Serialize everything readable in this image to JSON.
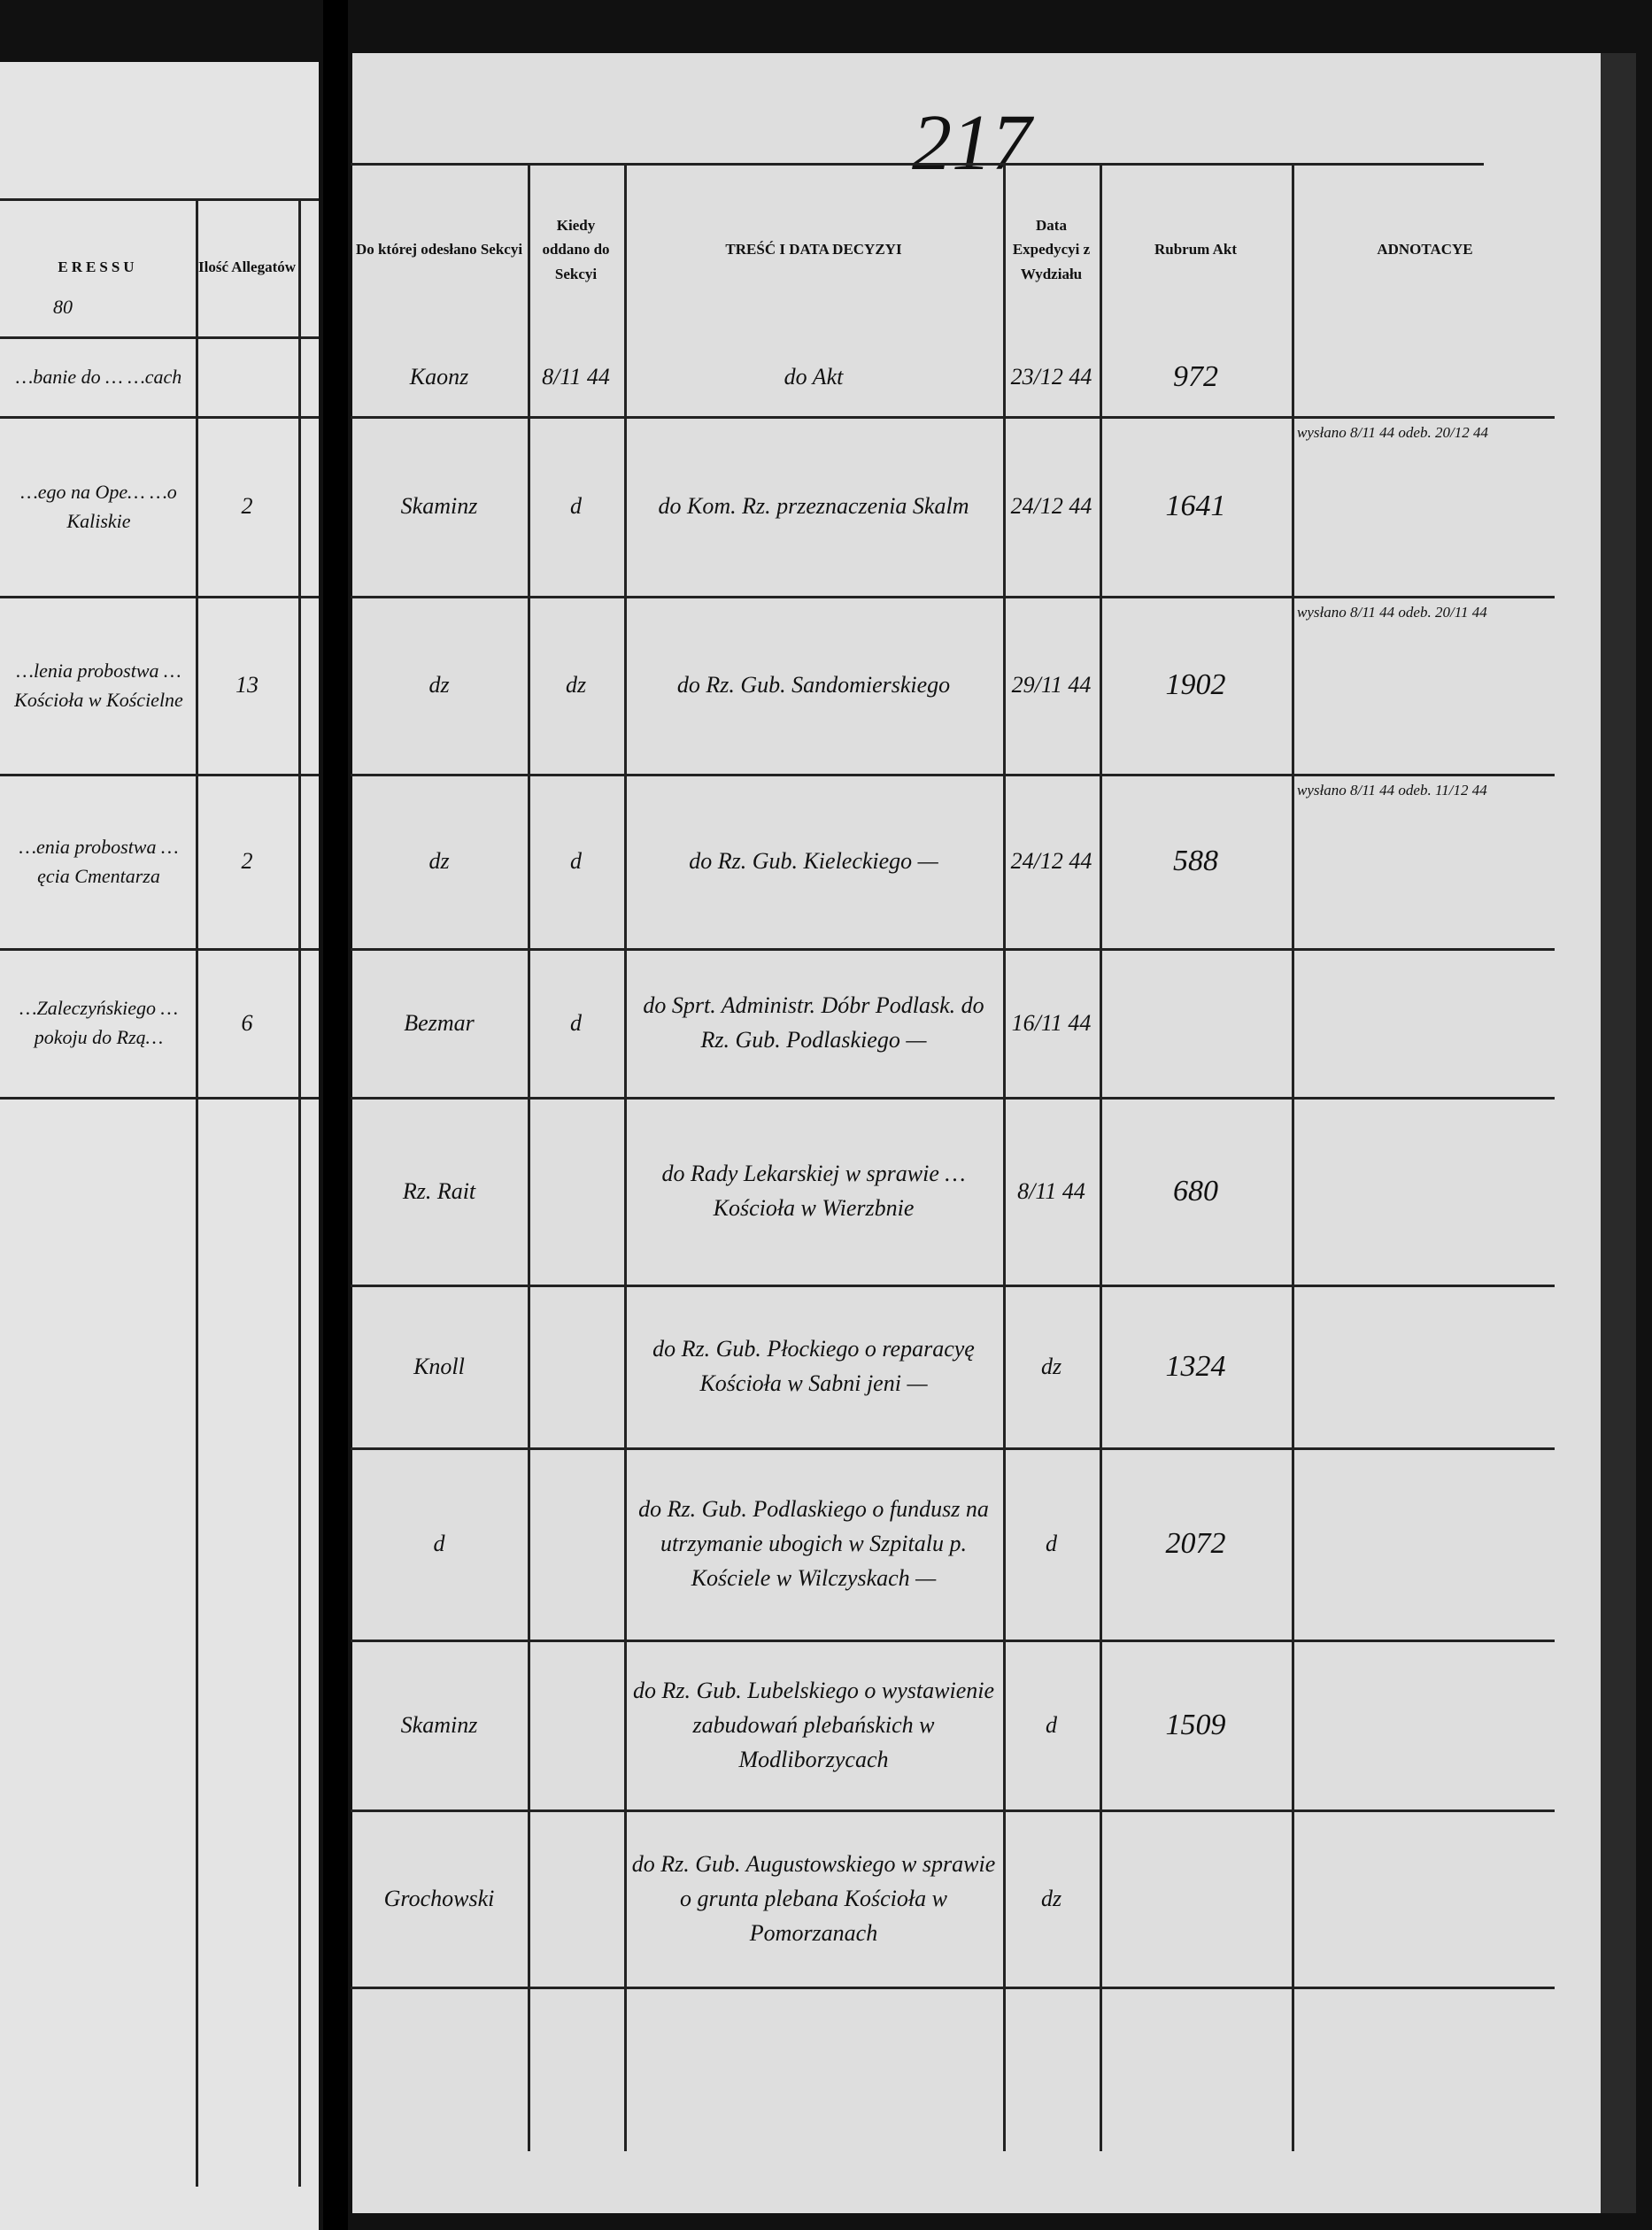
{
  "page_number": "217",
  "left_page": {
    "header": {
      "title": "ERESSU",
      "allegaty": "Ilość Allegatów",
      "stamp": "80"
    },
    "rows": [
      {
        "text": "…banie do … …cach"
      },
      {
        "text": "…ego na Ope… …o Kaliskie",
        "count": "2"
      },
      {
        "text": "…lenia probostwa … Kościoła w Kościelne",
        "count": "13"
      },
      {
        "text": "…enia probostwa …ęcia Cmentarza",
        "count": "2"
      },
      {
        "text": "…Zaleczyńskiego …pokoju do Rzą…",
        "count": "6"
      }
    ]
  },
  "table": {
    "headers": [
      "Do której odesłano Sekcyi",
      "Kiedy oddano do Sekcyi",
      "TREŚĆ I DATA DECYZYI",
      "Data Expedycyi z Wydziału",
      "Rubrum Akt",
      "ADNOTACYE"
    ],
    "rows": [
      {
        "section": "Kaonz",
        "sent": "8/11 44",
        "decision": "do Akt",
        "expedited": "23/12 44",
        "rubrum": "972"
      },
      {
        "section": "Skaminz",
        "sent": "d",
        "decision": "do Kom. Rz. przeznaczenia Skalm",
        "expedited": "24/12 44",
        "rubrum": "1641",
        "note": "wysłano 8/11 44 odeb. 20/12 44"
      },
      {
        "section": "dz",
        "sent": "dz",
        "decision": "do Rz. Gub. Sandomierskiego",
        "expedited": "29/11 44",
        "rubrum": "1902",
        "note": "wysłano 8/11 44 odeb. 20/11 44"
      },
      {
        "section": "dz",
        "sent": "d",
        "decision": "do Rz. Gub. Kieleckiego —",
        "expedited": "24/12 44",
        "rubrum": "588",
        "note": "wysłano 8/11 44 odeb. 11/12 44"
      },
      {
        "section": "Bezmar",
        "sent": "d",
        "decision": "do Sprt. Administr. Dóbr Podlask. do Rz. Gub. Podlaskiego —",
        "expedited": "16/11 44"
      },
      {
        "section": "Rz. Rait",
        "decision": "do Rady Lekarskiej w sprawie … Kościoła w Wierzbnie",
        "expedited": "8/11 44",
        "rubrum": "680"
      },
      {
        "section": "Knoll",
        "decision": "do Rz. Gub. Płockiego o reparacyę Kościoła w Sabni jeni —",
        "expedited": "dz",
        "rubrum": "1324"
      },
      {
        "section": "d",
        "decision": "do Rz. Gub. Podlaskiego o fundusz na utrzymanie ubogich w Szpitalu p. Kościele w Wilczyskach —",
        "expedited": "d",
        "rubrum": "2072"
      },
      {
        "section": "Skaminz",
        "decision": "do Rz. Gub. Lubelskiego o wystawienie zabudowań plebańskich w Modliborzycach",
        "expedited": "d",
        "rubrum": "1509"
      },
      {
        "section": "Grochowski",
        "decision": "do Rz. Gub. Augustowskiego w sprawie o grunta plebana Kościoła w Pomorzanach",
        "expedited": "dz"
      }
    ]
  }
}
